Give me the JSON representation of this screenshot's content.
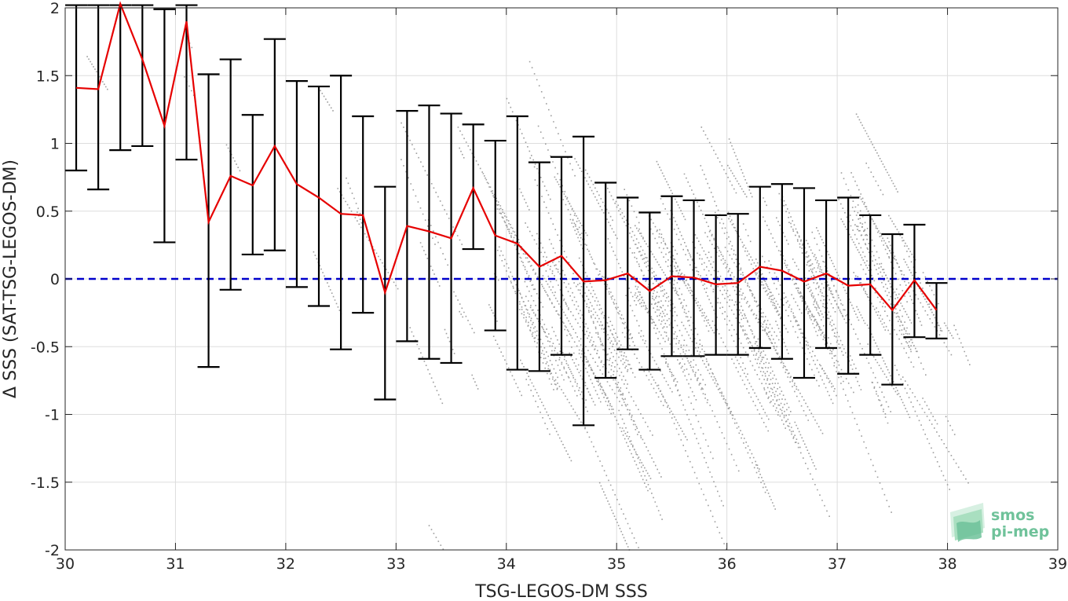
{
  "chart_data": {
    "type": "scatter",
    "xlabel": "TSG-LEGOS-DM SSS",
    "ylabel": "Δ SSS (SAT-TSG-LEGOS-DM)",
    "xlim": [
      30,
      39
    ],
    "ylim": [
      -2,
      2
    ],
    "xticks": [
      "30",
      "31",
      "32",
      "33",
      "34",
      "35",
      "36",
      "37",
      "38",
      "39"
    ],
    "yticks": [
      "-2",
      "-1.5",
      "-1",
      "-0.5",
      "0",
      "0.5",
      "1",
      "1.5",
      "2"
    ],
    "grid": true,
    "reference_line": {
      "y": 0,
      "style": "dashed",
      "color": "#0000cc"
    },
    "mean_series": {
      "color": "#e60000",
      "x": [
        30.1,
        30.3,
        30.5,
        30.7,
        30.9,
        31.1,
        31.3,
        31.5,
        31.7,
        31.9,
        32.1,
        32.3,
        32.5,
        32.7,
        32.9,
        33.1,
        33.3,
        33.5,
        33.7,
        33.9,
        34.1,
        34.3,
        34.5,
        34.7,
        34.9,
        35.1,
        35.3,
        35.5,
        35.7,
        35.9,
        36.1,
        36.3,
        36.5,
        36.7,
        36.9,
        37.1,
        37.3,
        37.5,
        37.7,
        37.9
      ],
      "y": [
        1.41,
        1.4,
        2.03,
        1.62,
        1.13,
        1.9,
        0.42,
        0.76,
        0.69,
        0.98,
        0.7,
        0.6,
        0.48,
        0.47,
        -0.1,
        0.39,
        0.35,
        0.3,
        0.67,
        0.32,
        0.26,
        0.09,
        0.17,
        -0.02,
        -0.01,
        0.04,
        -0.09,
        0.02,
        0.01,
        -0.04,
        -0.03,
        0.09,
        0.06,
        -0.02,
        0.04,
        -0.05,
        -0.04,
        -0.23,
        -0.01,
        -0.23
      ]
    },
    "error_bars": {
      "color": "#000000",
      "x": [
        30.1,
        30.3,
        30.5,
        30.7,
        30.9,
        31.1,
        31.3,
        31.5,
        31.7,
        31.9,
        32.1,
        32.3,
        32.5,
        32.7,
        32.9,
        33.1,
        33.3,
        33.5,
        33.7,
        33.9,
        34.1,
        34.3,
        34.5,
        34.7,
        34.9,
        35.1,
        35.3,
        35.5,
        35.7,
        35.9,
        36.1,
        36.3,
        36.5,
        36.7,
        36.9,
        37.1,
        37.3,
        37.5,
        37.7,
        37.9
      ],
      "lower": [
        0.8,
        0.66,
        0.95,
        0.98,
        0.27,
        0.88,
        -0.65,
        -0.08,
        0.18,
        0.21,
        -0.06,
        -0.2,
        -0.52,
        -0.25,
        -0.89,
        -0.46,
        -0.59,
        -0.62,
        0.22,
        -0.38,
        -0.67,
        -0.68,
        -0.56,
        -1.08,
        -0.73,
        -0.52,
        -0.67,
        -0.57,
        -0.57,
        -0.56,
        -0.56,
        -0.51,
        -0.59,
        -0.73,
        -0.51,
        -0.7,
        -0.56,
        -0.78,
        -0.43,
        -0.44
      ],
      "upper": [
        2.05,
        2.05,
        2.05,
        2.05,
        1.99,
        2.05,
        1.51,
        1.62,
        1.21,
        1.77,
        1.46,
        1.42,
        1.5,
        1.2,
        0.68,
        1.24,
        1.28,
        1.22,
        1.14,
        1.02,
        1.2,
        0.86,
        0.9,
        1.05,
        0.71,
        0.6,
        0.49,
        0.61,
        0.58,
        0.47,
        0.48,
        0.68,
        0.7,
        0.67,
        0.58,
        0.6,
        0.47,
        0.33,
        0.4,
        -0.03
      ]
    },
    "scatter_series": {
      "color": "#8c8c8c",
      "description_level": "dense cloud of individual match-up points"
    }
  },
  "logo": {
    "line1": "smos",
    "line2": "pi-mep",
    "color": "#6fc29a"
  }
}
